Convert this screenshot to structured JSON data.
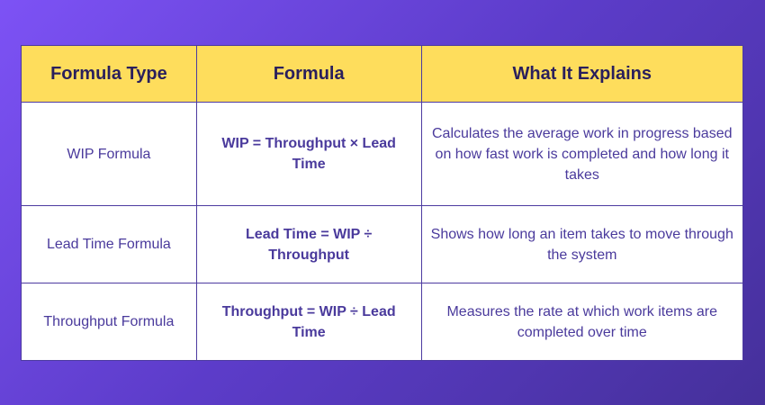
{
  "headers": [
    "Formula Type",
    "Formula",
    "What It Explains"
  ],
  "rows": [
    {
      "type": "WIP Formula",
      "formula": "WIP = Throughput × Lead Time",
      "explains": "Calculates the average work in progress based on how fast work is completed and how long it takes"
    },
    {
      "type": "Lead Time Formula",
      "formula": "Lead Time = WIP ÷ Throughput",
      "explains": "Shows how long an item takes to move through the system"
    },
    {
      "type": "Throughput Formula",
      "formula": "Throughput = WIP ÷ Lead Time",
      "explains": "Measures the rate at which work items are completed over time"
    }
  ],
  "colors": {
    "header_bg": "#fedd5c",
    "header_text": "#2a1f5c",
    "body_text": "#4a3a9c",
    "border": "#4c3aa0"
  }
}
